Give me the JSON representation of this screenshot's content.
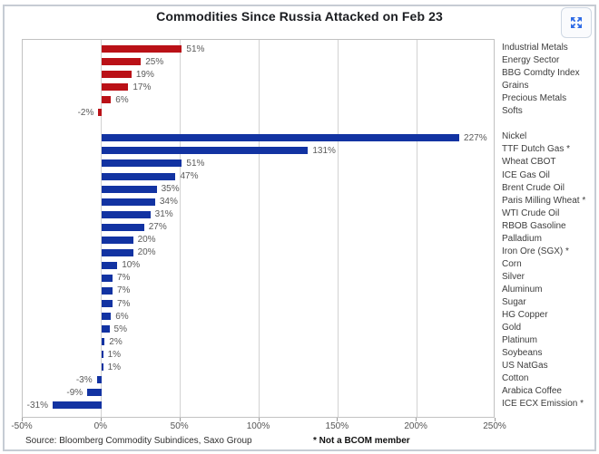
{
  "header": {
    "title": "Commodities Since Russia Attacked on Feb 23",
    "expand_icon": "expand-arrows-icon"
  },
  "colors": {
    "red_bars": "#ba1117",
    "blue_bars": "#1233a2",
    "frame_border": "#c6ccd4",
    "grid": "#d2d2d2",
    "expand_icon_blue": "#2e6be6"
  },
  "chart_data": {
    "type": "bar",
    "orientation": "horizontal",
    "title": "Commodities Since Russia Attacked on Feb 23",
    "xlabel": "",
    "ylabel": "",
    "grid": true,
    "value_label_format": "percent",
    "x_axis": {
      "min": -50,
      "max": 250,
      "tick_values": [
        -50,
        0,
        50,
        100,
        150,
        200,
        250
      ],
      "tick_labels": [
        "-50%",
        "0%",
        "50%",
        "100%",
        "150%",
        "200%",
        "250%"
      ]
    },
    "series": [
      {
        "color": "#ba1117",
        "items": [
          {
            "label": "Industrial Metals",
            "value": 51
          },
          {
            "label": "Energy Sector",
            "value": 25
          },
          {
            "label": "BBG Comdty Index",
            "value": 19
          },
          {
            "label": "Grains",
            "value": 17
          },
          {
            "label": "Precious Metals",
            "value": 6
          },
          {
            "label": "Softs",
            "value": -2
          }
        ]
      },
      {
        "color": "#1233a2",
        "items": [
          {
            "label": "Nickel",
            "value": 227
          },
          {
            "label": "TTF Dutch Gas *",
            "value": 131
          },
          {
            "label": "Wheat CBOT",
            "value": 51
          },
          {
            "label": "ICE Gas Oil",
            "value": 47
          },
          {
            "label": "Brent Crude Oil",
            "value": 35
          },
          {
            "label": "Paris Milling Wheat *",
            "value": 34
          },
          {
            "label": "WTI Crude Oil",
            "value": 31
          },
          {
            "label": "RBOB Gasoline",
            "value": 27
          },
          {
            "label": "Palladium",
            "value": 20
          },
          {
            "label": "Iron Ore (SGX) *",
            "value": 20
          },
          {
            "label": "Corn",
            "value": 10
          },
          {
            "label": "Silver",
            "value": 7
          },
          {
            "label": "Aluminum",
            "value": 7
          },
          {
            "label": "Sugar",
            "value": 7
          },
          {
            "label": "HG Copper",
            "value": 6
          },
          {
            "label": "Gold",
            "value": 5
          },
          {
            "label": "Platinum",
            "value": 2
          },
          {
            "label": "Soybeans",
            "value": 1
          },
          {
            "label": "US NatGas",
            "value": 1
          },
          {
            "label": "Cotton",
            "value": -3
          },
          {
            "label": "Arabica Coffee",
            "value": -9
          },
          {
            "label": "ICE ECX Emission *",
            "value": -31
          }
        ]
      }
    ],
    "footnote": "* Not a BCOM member",
    "source": "Source: Bloomberg Commodity Subindices, Saxo Group"
  }
}
